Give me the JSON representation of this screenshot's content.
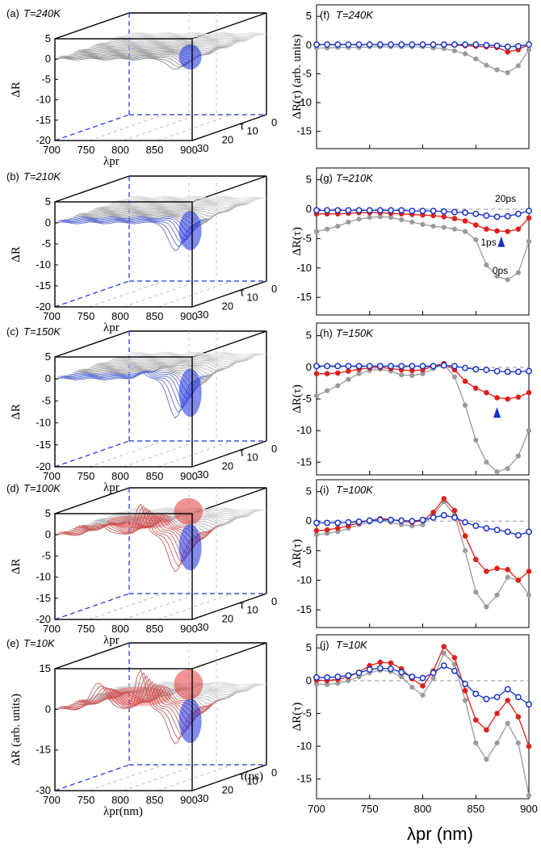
{
  "figure": {
    "left_panels": [
      {
        "tag": "(a)",
        "temp": "T=240K",
        "zticks": [
          "5",
          "0",
          "-5",
          "-10",
          "-15",
          "-20"
        ],
        "zlabel": "ΔR",
        "xlabel": "λpr",
        "xticks": [
          "700",
          "750",
          "800",
          "850",
          "900"
        ],
        "yticks": [
          "30",
          "20",
          "10",
          "0"
        ],
        "ylabel": "τ",
        "dip": 0.25,
        "peak": 0,
        "peak2": 0
      },
      {
        "tag": "(b)",
        "temp": "T=210K",
        "zticks": [
          "5",
          "0",
          "-5",
          "-10",
          "-15",
          "-20"
        ],
        "zlabel": "ΔR",
        "xlabel": "λpr",
        "xticks": [
          "700",
          "750",
          "800",
          "850",
          "900"
        ],
        "yticks": [
          "30",
          "20",
          "10",
          "0"
        ],
        "ylabel": "τ",
        "dip": 0.65,
        "peak": 0,
        "peak2": 0
      },
      {
        "tag": "(c)",
        "temp": "T=150K",
        "zticks": [
          "5",
          "0",
          "-5",
          "-10",
          "-15",
          "-20"
        ],
        "zlabel": "ΔR",
        "xlabel": "λpr",
        "xticks": [
          "700",
          "750",
          "800",
          "850",
          "900"
        ],
        "yticks": [
          "30",
          "20",
          "10",
          "0"
        ],
        "ylabel": "τ",
        "dip": 0.9,
        "peak": 0.15,
        "peak2": 0
      },
      {
        "tag": "(d)",
        "temp": "T=100K",
        "zticks": [
          "5",
          "0",
          "-5",
          "-10",
          "-15",
          "-20"
        ],
        "zlabel": "ΔR",
        "xlabel": "λpr",
        "xticks": [
          "700",
          "750",
          "800",
          "850",
          "900"
        ],
        "yticks": [
          "30",
          "20",
          "10",
          "0"
        ],
        "ylabel": "τ",
        "dip": 0.85,
        "peak": 0.7,
        "peak2": 0.25
      },
      {
        "tag": "(e)",
        "temp": "T=10K",
        "zticks": [
          "15",
          "0",
          "-15",
          "-30"
        ],
        "zlabel": "ΔR (arb. units)",
        "xlabel": "λpr(nm)",
        "xticks": [
          "700",
          "750",
          "800",
          "850",
          "900"
        ],
        "yticks": [
          "30",
          "20",
          "10",
          "0"
        ],
        "ylabel": "τ(ps)",
        "dip": 0.8,
        "peak": 0.9,
        "peak2": 0.6
      }
    ],
    "right_ylabel_first": "ΔR(τ) (arb. units)",
    "right_ylabel": "ΔR(τ)",
    "right_xlabel": "λpr (nm)",
    "colors": {
      "s0ps": "#9a9a9a",
      "s1ps": "#e0201b",
      "s20ps": "#1530c8",
      "arrow": "#1530c8",
      "dip": "#1a2ee0",
      "peak": "#e02a2a",
      "frame": "#000000",
      "floor": "#1a2ee0"
    }
  },
  "chart_data": [
    {
      "type": "line",
      "panel": "(f)",
      "temp_label": "T=240K",
      "xlim": [
        700,
        900
      ],
      "ylim": [
        -18,
        7
      ],
      "xticks": [
        700,
        750,
        800,
        850,
        900
      ],
      "yticks": [
        5,
        0,
        -5,
        -10,
        -15
      ],
      "x": [
        700,
        710,
        720,
        730,
        740,
        750,
        760,
        770,
        780,
        790,
        800,
        810,
        820,
        830,
        840,
        850,
        860,
        870,
        880,
        890,
        900
      ],
      "series": [
        {
          "name": "0ps",
          "values": [
            -0.5,
            -0.5,
            -0.4,
            -0.4,
            -0.4,
            -0.3,
            -0.3,
            -0.3,
            -0.3,
            -0.3,
            -0.3,
            -0.5,
            -0.6,
            -1.0,
            -1.5,
            -2.4,
            -3.5,
            -4.3,
            -4.8,
            -3.6,
            -0.8
          ]
        },
        {
          "name": "1ps",
          "values": [
            0.1,
            0.1,
            0.1,
            0.1,
            0.1,
            0.1,
            0.1,
            0.1,
            0.1,
            0.1,
            0.1,
            0.1,
            0.1,
            0.0,
            -0.1,
            -0.2,
            -0.3,
            -0.4,
            -1.2,
            -0.8,
            0.1
          ]
        },
        {
          "name": "20ps",
          "values": [
            0.1,
            0.1,
            0.1,
            0.1,
            0.1,
            0.1,
            0.1,
            0.1,
            0.1,
            0.1,
            0.1,
            0.1,
            0.1,
            0.1,
            0.1,
            0.1,
            0.0,
            -0.1,
            -0.3,
            -0.2,
            0.1
          ]
        }
      ],
      "annotations": [],
      "arrows": []
    },
    {
      "type": "line",
      "panel": "(g)",
      "temp_label": "T=210K",
      "xlim": [
        700,
        900
      ],
      "ylim": [
        -18,
        7
      ],
      "xticks": [
        700,
        750,
        800,
        850,
        900
      ],
      "yticks": [
        5,
        0,
        -5,
        -10,
        -15
      ],
      "x": [
        700,
        710,
        720,
        730,
        740,
        750,
        760,
        770,
        780,
        790,
        800,
        810,
        820,
        830,
        840,
        850,
        860,
        870,
        880,
        890,
        900
      ],
      "series": [
        {
          "name": "0ps",
          "values": [
            -3.8,
            -3.4,
            -2.9,
            -2.2,
            -1.7,
            -1.4,
            -1.3,
            -1.4,
            -1.8,
            -2.2,
            -2.6,
            -2.9,
            -3.1,
            -3.4,
            -3.8,
            -5.2,
            -9.5,
            -11.4,
            -12.0,
            -10.8,
            -5.5
          ]
        },
        {
          "name": "1ps",
          "values": [
            -0.8,
            -0.8,
            -0.8,
            -0.7,
            -0.6,
            -0.6,
            -0.6,
            -0.7,
            -0.8,
            -0.9,
            -1.0,
            -1.1,
            -1.3,
            -1.6,
            -2.0,
            -2.7,
            -3.4,
            -3.7,
            -3.8,
            -3.4,
            -1.5
          ]
        },
        {
          "name": "20ps",
          "values": [
            -0.2,
            -0.2,
            -0.2,
            -0.2,
            -0.2,
            -0.2,
            -0.2,
            -0.2,
            -0.2,
            -0.3,
            -0.3,
            -0.3,
            -0.4,
            -0.5,
            -0.6,
            -0.8,
            -1.1,
            -1.3,
            -1.2,
            -0.8,
            -0.3
          ]
        }
      ],
      "annotations": [
        {
          "text": "20ps",
          "x": 878,
          "y": 1.2
        },
        {
          "text": "1ps",
          "x": 862,
          "y": -6.2
        },
        {
          "text": "0ps",
          "x": 873,
          "y": -11.0
        }
      ],
      "arrows": [
        {
          "x": 874,
          "y": -5.6
        }
      ]
    },
    {
      "type": "line",
      "panel": "(h)",
      "temp_label": "T=150K",
      "xlim": [
        700,
        900
      ],
      "ylim": [
        -17,
        7
      ],
      "xticks": [
        700,
        750,
        800,
        850,
        900
      ],
      "yticks": [
        5,
        0,
        -5,
        -10,
        -15
      ],
      "x": [
        700,
        710,
        720,
        730,
        740,
        750,
        760,
        770,
        780,
        790,
        800,
        810,
        820,
        830,
        840,
        850,
        860,
        870,
        880,
        890,
        900
      ],
      "series": [
        {
          "name": "0ps",
          "values": [
            -4.5,
            -3.7,
            -2.9,
            -1.9,
            -1.0,
            -0.5,
            -0.3,
            -0.6,
            -1.2,
            -1.3,
            -1.0,
            -0.2,
            0.5,
            -1.5,
            -6.0,
            -11.5,
            -15.0,
            -16.5,
            -16.0,
            -14.0,
            -10.0
          ]
        },
        {
          "name": "1ps",
          "values": [
            -1.0,
            -1.0,
            -0.9,
            -0.6,
            -0.3,
            -0.1,
            0.0,
            -0.2,
            -0.4,
            -0.5,
            -0.4,
            0.2,
            0.6,
            -0.4,
            -2.2,
            -3.3,
            -4.0,
            -4.8,
            -5.0,
            -4.7,
            -4.0
          ]
        },
        {
          "name": "20ps",
          "values": [
            0.2,
            0.2,
            0.2,
            0.2,
            0.2,
            0.2,
            0.2,
            0.2,
            0.2,
            0.2,
            0.2,
            0.2,
            0.3,
            0.2,
            -0.1,
            -0.3,
            -0.4,
            -0.6,
            -0.7,
            -0.7,
            -0.6
          ]
        }
      ],
      "annotations": [],
      "arrows": [
        {
          "x": 870,
          "y": -7.2
        }
      ]
    },
    {
      "type": "line",
      "panel": "(i)",
      "temp_label": "T=100K",
      "xlim": [
        700,
        900
      ],
      "ylim": [
        -18,
        7
      ],
      "xticks": [
        700,
        750,
        800,
        850,
        900
      ],
      "yticks": [
        5,
        0,
        -5,
        -10,
        -15
      ],
      "x": [
        700,
        710,
        720,
        730,
        740,
        750,
        760,
        770,
        780,
        790,
        800,
        810,
        820,
        830,
        840,
        850,
        860,
        870,
        880,
        890,
        900
      ],
      "series": [
        {
          "name": "0ps",
          "values": [
            -2.3,
            -2.1,
            -1.8,
            -1.2,
            -0.6,
            -0.2,
            0.1,
            -0.2,
            -0.6,
            -0.8,
            -0.6,
            1.0,
            3.3,
            1.0,
            -5.0,
            -12.0,
            -14.5,
            -12.5,
            -9.5,
            -10.0,
            -12.5
          ]
        },
        {
          "name": "1ps",
          "values": [
            -1.6,
            -1.5,
            -1.2,
            -0.8,
            -0.3,
            0.1,
            0.4,
            0.3,
            0.0,
            -0.2,
            0.1,
            1.5,
            3.8,
            1.8,
            -2.5,
            -6.5,
            -8.5,
            -8.0,
            -8.2,
            -10.0,
            -8.5
          ]
        },
        {
          "name": "20ps",
          "values": [
            -0.3,
            -0.3,
            -0.3,
            -0.2,
            -0.1,
            0.1,
            0.2,
            0.2,
            0.1,
            0.0,
            0.2,
            0.6,
            1.0,
            0.6,
            -0.2,
            -0.8,
            -1.2,
            -1.5,
            -1.8,
            -2.4,
            -1.8
          ]
        }
      ],
      "annotations": [],
      "arrows": []
    },
    {
      "type": "line",
      "panel": "(j)",
      "temp_label": "T=10K",
      "xlim": [
        700,
        900
      ],
      "ylim": [
        -18,
        7
      ],
      "xticks": [
        700,
        750,
        800,
        850,
        900
      ],
      "yticks": [
        5,
        0,
        -5,
        -10,
        -15
      ],
      "x": [
        700,
        710,
        720,
        730,
        740,
        750,
        760,
        770,
        780,
        790,
        800,
        810,
        820,
        830,
        840,
        850,
        860,
        870,
        880,
        890,
        900
      ],
      "series": [
        {
          "name": "0ps",
          "values": [
            -0.5,
            -0.6,
            -0.4,
            0.0,
            0.6,
            1.2,
            1.6,
            1.4,
            0.6,
            -1.0,
            -2.2,
            0.4,
            4.2,
            2.5,
            -3.0,
            -9.5,
            -12.0,
            -9.5,
            -6.5,
            -9.5,
            -17.5
          ]
        },
        {
          "name": "1ps",
          "values": [
            0.1,
            0.0,
            0.2,
            0.6,
            1.3,
            2.3,
            2.8,
            2.7,
            1.8,
            0.3,
            -0.8,
            1.5,
            5.2,
            3.5,
            -1.5,
            -6.0,
            -7.5,
            -5.0,
            -3.0,
            -5.5,
            -10.0
          ]
        },
        {
          "name": "20ps",
          "values": [
            0.5,
            0.5,
            0.6,
            0.8,
            1.2,
            1.7,
            1.9,
            1.8,
            1.3,
            0.6,
            0.4,
            1.2,
            2.3,
            1.5,
            -0.5,
            -2.0,
            -2.8,
            -2.5,
            -1.3,
            -2.5,
            -3.6
          ]
        }
      ],
      "annotations": [],
      "arrows": []
    }
  ]
}
